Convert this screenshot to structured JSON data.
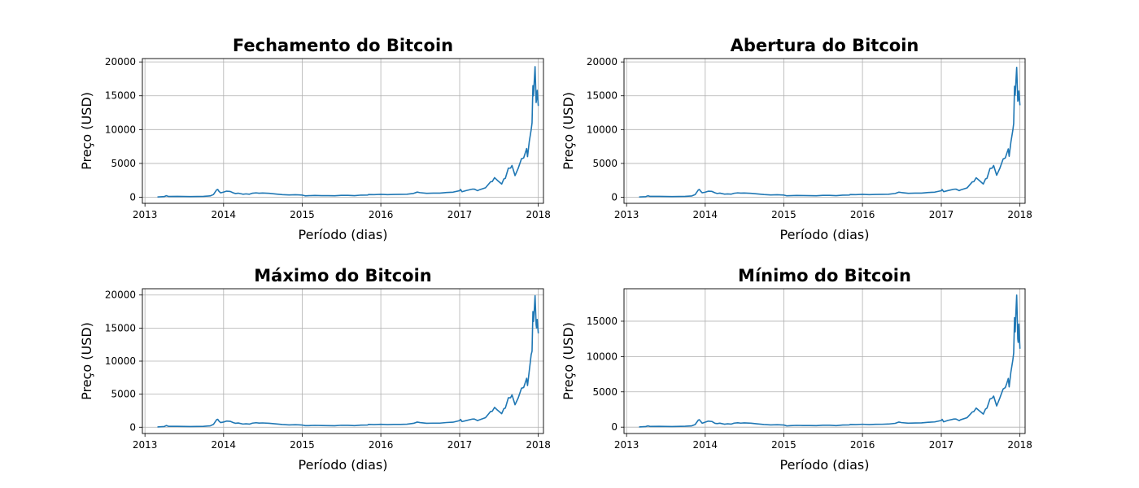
{
  "chart_data": [
    {
      "type": "line",
      "title": "Fechamento do Bitcoin",
      "xlabel": "Período (dias)",
      "ylabel": "Preço (USD)",
      "x_ticks": [
        "2013",
        "2014",
        "2015",
        "2016",
        "2017",
        "2018"
      ],
      "y_ticks": [
        0,
        5000,
        10000,
        15000,
        20000
      ],
      "xlim": [
        "2012-12-20",
        "2018-01-25"
      ],
      "ylim": [
        -900,
        20500
      ],
      "grid": true,
      "color": "#1f77b4",
      "series": [
        {
          "x": [
            "2013-02-28",
            "2013-03-31",
            "2013-04-10",
            "2013-04-20",
            "2013-05-31",
            "2013-07-31",
            "2013-09-30",
            "2013-10-31",
            "2013-11-15",
            "2013-11-30",
            "2013-12-05",
            "2013-12-10",
            "2013-12-18",
            "2013-12-31",
            "2014-01-15",
            "2014-02-01",
            "2014-02-15",
            "2014-02-25",
            "2014-03-10",
            "2014-04-01",
            "2014-04-15",
            "2014-05-01",
            "2014-05-15",
            "2014-06-01",
            "2014-06-15",
            "2014-07-01",
            "2014-08-01",
            "2014-09-01",
            "2014-10-01",
            "2014-11-01",
            "2014-12-01",
            "2015-01-01",
            "2015-01-15",
            "2015-02-01",
            "2015-03-01",
            "2015-04-01",
            "2015-05-01",
            "2015-06-01",
            "2015-07-01",
            "2015-08-01",
            "2015-09-01",
            "2015-10-01",
            "2015-11-01",
            "2015-11-05",
            "2015-12-01",
            "2016-01-01",
            "2016-02-01",
            "2016-03-01",
            "2016-04-01",
            "2016-05-01",
            "2016-06-01",
            "2016-06-18",
            "2016-07-01",
            "2016-08-01",
            "2016-09-01",
            "2016-10-01",
            "2016-11-01",
            "2016-12-01",
            "2017-01-01",
            "2017-01-05",
            "2017-01-12",
            "2017-02-01",
            "2017-03-01",
            "2017-03-10",
            "2017-03-25",
            "2017-04-01",
            "2017-05-01",
            "2017-05-25",
            "2017-06-01",
            "2017-06-12",
            "2017-06-25",
            "2017-07-15",
            "2017-07-25",
            "2017-08-01",
            "2017-08-15",
            "2017-08-25",
            "2017-09-01",
            "2017-09-15",
            "2017-09-30",
            "2017-10-15",
            "2017-10-25",
            "2017-11-01",
            "2017-11-08",
            "2017-11-12",
            "2017-11-20",
            "2017-11-29",
            "2017-12-03",
            "2017-12-07",
            "2017-12-10",
            "2017-12-13",
            "2017-12-17",
            "2017-12-22",
            "2017-12-24",
            "2017-12-27",
            "2018-01-01"
          ],
          "y": [
            35,
            95,
            230,
            120,
            130,
            95,
            135,
            200,
            400,
            1100,
            1150,
            900,
            650,
            750,
            900,
            850,
            650,
            550,
            600,
            450,
            500,
            450,
            600,
            650,
            600,
            630,
            580,
            480,
            390,
            340,
            370,
            320,
            210,
            230,
            270,
            240,
            235,
            225,
            285,
            280,
            230,
            315,
            330,
            400,
            380,
            430,
            380,
            420,
            425,
            450,
            570,
            760,
            680,
            580,
            610,
            610,
            700,
            750,
            970,
            1150,
            810,
            990,
            1200,
            1200,
            970,
            1080,
            1400,
            2300,
            2300,
            2900,
            2500,
            1950,
            2700,
            2800,
            4300,
            4300,
            4700,
            3200,
            4300,
            5700,
            5800,
            6500,
            7200,
            6000,
            8200,
            10000,
            11000,
            16500,
            15000,
            17000,
            19300,
            14000,
            14500,
            15800,
            13500
          ]
        }
      ]
    },
    {
      "type": "line",
      "title": "Abertura do Bitcoin",
      "xlabel": "Período (dias)",
      "ylabel": "Preço (USD)",
      "x_ticks": [
        "2013",
        "2014",
        "2015",
        "2016",
        "2017",
        "2018"
      ],
      "y_ticks": [
        0,
        5000,
        10000,
        15000,
        20000
      ],
      "xlim": [
        "2012-12-20",
        "2018-01-25"
      ],
      "ylim": [
        -900,
        20500
      ],
      "grid": true,
      "color": "#1f77b4",
      "series": [
        {
          "x": [
            "2013-02-28",
            "2013-03-31",
            "2013-04-10",
            "2013-04-20",
            "2013-05-31",
            "2013-07-31",
            "2013-09-30",
            "2013-10-31",
            "2013-11-15",
            "2013-11-30",
            "2013-12-05",
            "2013-12-10",
            "2013-12-18",
            "2013-12-31",
            "2014-01-15",
            "2014-02-01",
            "2014-02-15",
            "2014-02-25",
            "2014-03-10",
            "2014-04-01",
            "2014-04-15",
            "2014-05-01",
            "2014-05-15",
            "2014-06-01",
            "2014-06-15",
            "2014-07-01",
            "2014-08-01",
            "2014-09-01",
            "2014-10-01",
            "2014-11-01",
            "2014-12-01",
            "2015-01-01",
            "2015-01-15",
            "2015-02-01",
            "2015-03-01",
            "2015-04-01",
            "2015-05-01",
            "2015-06-01",
            "2015-07-01",
            "2015-08-01",
            "2015-09-01",
            "2015-10-01",
            "2015-11-01",
            "2015-11-05",
            "2015-12-01",
            "2016-01-01",
            "2016-02-01",
            "2016-03-01",
            "2016-04-01",
            "2016-05-01",
            "2016-06-01",
            "2016-06-18",
            "2016-07-01",
            "2016-08-01",
            "2016-09-01",
            "2016-10-01",
            "2016-11-01",
            "2016-12-01",
            "2017-01-01",
            "2017-01-05",
            "2017-01-12",
            "2017-02-01",
            "2017-03-01",
            "2017-03-10",
            "2017-03-25",
            "2017-04-01",
            "2017-05-01",
            "2017-05-25",
            "2017-06-01",
            "2017-06-12",
            "2017-06-25",
            "2017-07-15",
            "2017-07-25",
            "2017-08-01",
            "2017-08-15",
            "2017-08-25",
            "2017-09-01",
            "2017-09-15",
            "2017-09-30",
            "2017-10-15",
            "2017-10-25",
            "2017-11-01",
            "2017-11-08",
            "2017-11-12",
            "2017-11-20",
            "2017-11-29",
            "2017-12-03",
            "2017-12-07",
            "2017-12-10",
            "2017-12-13",
            "2017-12-17",
            "2017-12-22",
            "2017-12-24",
            "2017-12-27",
            "2018-01-01"
          ],
          "y": [
            35,
            90,
            220,
            125,
            130,
            95,
            135,
            195,
            390,
            1080,
            1150,
            920,
            660,
            740,
            890,
            860,
            660,
            560,
            610,
            460,
            495,
            455,
            590,
            650,
            605,
            630,
            585,
            485,
            395,
            340,
            365,
            320,
            215,
            230,
            265,
            245,
            235,
            225,
            280,
            280,
            230,
            310,
            330,
            395,
            380,
            430,
            380,
            420,
            425,
            450,
            560,
            750,
            690,
            580,
            605,
            610,
            700,
            750,
            965,
            1140,
            820,
            985,
            1190,
            1200,
            975,
            1080,
            1390,
            2280,
            2300,
            2880,
            2510,
            1960,
            2690,
            2800,
            4250,
            4310,
            4690,
            3250,
            4300,
            5650,
            5800,
            6480,
            7150,
            6050,
            8150,
            9900,
            10900,
            16400,
            15100,
            16900,
            19200,
            14200,
            14400,
            15700,
            13600
          ]
        }
      ]
    },
    {
      "type": "line",
      "title": "Máximo do Bitcoin",
      "xlabel": "Período (dias)",
      "ylabel": "Preço (USD)",
      "x_ticks": [
        "2013",
        "2014",
        "2015",
        "2016",
        "2017",
        "2018"
      ],
      "y_ticks": [
        0,
        5000,
        10000,
        15000,
        20000
      ],
      "xlim": [
        "2012-12-20",
        "2018-01-25"
      ],
      "ylim": [
        -950,
        20950
      ],
      "grid": true,
      "color": "#1f77b4",
      "series": [
        {
          "x": [
            "2013-02-28",
            "2013-03-31",
            "2013-04-10",
            "2013-04-20",
            "2013-05-31",
            "2013-07-31",
            "2013-09-30",
            "2013-10-31",
            "2013-11-15",
            "2013-11-30",
            "2013-12-05",
            "2013-12-10",
            "2013-12-18",
            "2013-12-31",
            "2014-01-15",
            "2014-02-01",
            "2014-02-15",
            "2014-02-25",
            "2014-03-10",
            "2014-04-01",
            "2014-04-15",
            "2014-05-01",
            "2014-05-15",
            "2014-06-01",
            "2014-06-15",
            "2014-07-01",
            "2014-08-01",
            "2014-09-01",
            "2014-10-01",
            "2014-11-01",
            "2014-12-01",
            "2015-01-01",
            "2015-01-15",
            "2015-02-01",
            "2015-03-01",
            "2015-04-01",
            "2015-05-01",
            "2015-06-01",
            "2015-07-01",
            "2015-08-01",
            "2015-09-01",
            "2015-10-01",
            "2015-11-01",
            "2015-11-05",
            "2015-12-01",
            "2016-01-01",
            "2016-02-01",
            "2016-03-01",
            "2016-04-01",
            "2016-05-01",
            "2016-06-01",
            "2016-06-18",
            "2016-07-01",
            "2016-08-01",
            "2016-09-01",
            "2016-10-01",
            "2016-11-01",
            "2016-12-01",
            "2017-01-01",
            "2017-01-05",
            "2017-01-12",
            "2017-02-01",
            "2017-03-01",
            "2017-03-10",
            "2017-03-25",
            "2017-04-01",
            "2017-05-01",
            "2017-05-25",
            "2017-06-01",
            "2017-06-12",
            "2017-06-25",
            "2017-07-15",
            "2017-07-25",
            "2017-08-01",
            "2017-08-15",
            "2017-08-25",
            "2017-09-01",
            "2017-09-15",
            "2017-09-30",
            "2017-10-15",
            "2017-10-25",
            "2017-11-01",
            "2017-11-08",
            "2017-11-12",
            "2017-11-20",
            "2017-11-29",
            "2017-12-03",
            "2017-12-07",
            "2017-12-10",
            "2017-12-13",
            "2017-12-17",
            "2017-12-22",
            "2017-12-24",
            "2017-12-27",
            "2018-01-01"
          ],
          "y": [
            40,
            100,
            260,
            140,
            135,
            100,
            140,
            210,
            430,
            1150,
            1200,
            950,
            700,
            780,
            930,
            890,
            700,
            600,
            640,
            480,
            520,
            470,
            620,
            680,
            630,
            650,
            600,
            500,
            410,
            350,
            380,
            330,
            240,
            245,
            280,
            255,
            245,
            230,
            295,
            285,
            240,
            320,
            340,
            430,
            390,
            440,
            390,
            430,
            430,
            460,
            590,
            780,
            700,
            590,
            620,
            620,
            710,
            760,
            1000,
            1180,
            850,
            1010,
            1230,
            1240,
            1000,
            1100,
            1450,
            2400,
            2400,
            3000,
            2600,
            2050,
            2800,
            2900,
            4450,
            4450,
            4900,
            3400,
            4450,
            5900,
            6000,
            6700,
            7400,
            6300,
            8500,
            11000,
            11500,
            17500,
            16000,
            17500,
            19900,
            15500,
            15000,
            16300,
            14200
          ]
        }
      ]
    },
    {
      "type": "line",
      "title": "Mínimo do Bitcoin",
      "xlabel": "Período (dias)",
      "ylabel": "Preço (USD)",
      "x_ticks": [
        "2013",
        "2014",
        "2015",
        "2016",
        "2017",
        "2018"
      ],
      "y_ticks": [
        0,
        5000,
        10000,
        15000
      ],
      "xlim": [
        "2012-12-20",
        "2018-01-25"
      ],
      "ylim": [
        -900,
        19600
      ],
      "grid": true,
      "color": "#1f77b4",
      "series": [
        {
          "x": [
            "2013-02-28",
            "2013-03-31",
            "2013-04-10",
            "2013-04-20",
            "2013-05-31",
            "2013-07-31",
            "2013-09-30",
            "2013-10-31",
            "2013-11-15",
            "2013-11-30",
            "2013-12-05",
            "2013-12-10",
            "2013-12-18",
            "2013-12-31",
            "2014-01-15",
            "2014-02-01",
            "2014-02-15",
            "2014-02-25",
            "2014-03-10",
            "2014-04-01",
            "2014-04-15",
            "2014-05-01",
            "2014-05-15",
            "2014-06-01",
            "2014-06-15",
            "2014-07-01",
            "2014-08-01",
            "2014-09-01",
            "2014-10-01",
            "2014-11-01",
            "2014-12-01",
            "2015-01-01",
            "2015-01-15",
            "2015-02-01",
            "2015-03-01",
            "2015-04-01",
            "2015-05-01",
            "2015-06-01",
            "2015-07-01",
            "2015-08-01",
            "2015-09-01",
            "2015-10-01",
            "2015-11-01",
            "2015-11-05",
            "2015-12-01",
            "2016-01-01",
            "2016-02-01",
            "2016-03-01",
            "2016-04-01",
            "2016-05-01",
            "2016-06-01",
            "2016-06-18",
            "2016-07-01",
            "2016-08-01",
            "2016-09-01",
            "2016-10-01",
            "2016-11-01",
            "2016-12-01",
            "2017-01-01",
            "2017-01-05",
            "2017-01-12",
            "2017-02-01",
            "2017-03-01",
            "2017-03-10",
            "2017-03-25",
            "2017-04-01",
            "2017-05-01",
            "2017-05-25",
            "2017-06-01",
            "2017-06-12",
            "2017-06-25",
            "2017-07-15",
            "2017-07-25",
            "2017-08-01",
            "2017-08-15",
            "2017-08-25",
            "2017-09-01",
            "2017-09-15",
            "2017-09-30",
            "2017-10-15",
            "2017-10-25",
            "2017-11-01",
            "2017-11-08",
            "2017-11-12",
            "2017-11-20",
            "2017-11-29",
            "2017-12-03",
            "2017-12-07",
            "2017-12-10",
            "2017-12-13",
            "2017-12-17",
            "2017-12-22",
            "2017-12-24",
            "2017-12-27",
            "2018-01-01"
          ],
          "y": [
            30,
            85,
            180,
            100,
            120,
            90,
            130,
            190,
            370,
            1000,
            1050,
            850,
            550,
            700,
            850,
            800,
            550,
            500,
            560,
            420,
            470,
            430,
            570,
            620,
            570,
            600,
            560,
            460,
            370,
            320,
            350,
            300,
            180,
            210,
            250,
            225,
            225,
            215,
            270,
            270,
            220,
            300,
            320,
            370,
            360,
            410,
            360,
            400,
            410,
            440,
            540,
            720,
            640,
            560,
            590,
            600,
            690,
            740,
            940,
            1100,
            750,
            960,
            1150,
            1150,
            920,
            1050,
            1350,
            2150,
            2200,
            2700,
            2350,
            1850,
            2550,
            2700,
            4000,
            4100,
            4400,
            3000,
            4150,
            5400,
            5600,
            6200,
            6900,
            5700,
            7800,
            9500,
            10500,
            15500,
            13500,
            16000,
            18700,
            12500,
            12000,
            14600,
            11100
          ]
        }
      ]
    }
  ]
}
